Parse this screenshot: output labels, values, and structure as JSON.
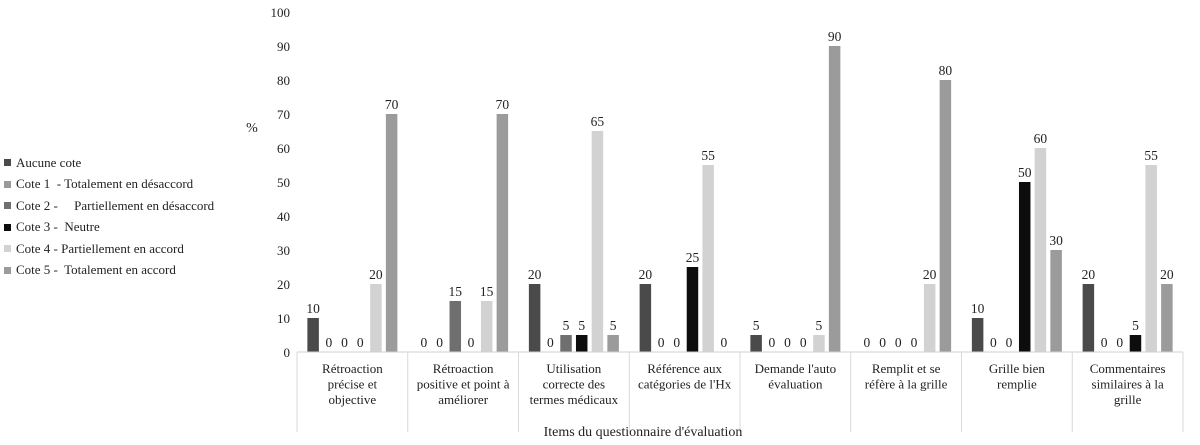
{
  "chart_data": {
    "type": "bar",
    "title": "",
    "xlabel": "Items du questionnaire d'évaluation",
    "ylabel": "%",
    "ylim": [
      0,
      100
    ],
    "yticks": [
      0,
      10,
      20,
      30,
      40,
      50,
      60,
      70,
      80,
      90,
      100
    ],
    "grid": false,
    "legend_position": "left",
    "categories": [
      [
        "Rétroaction",
        "précise et",
        "objective"
      ],
      [
        "Rétroaction",
        "positive et point à",
        "améliorer"
      ],
      [
        "Utilisation",
        "correcte des",
        "termes médicaux"
      ],
      [
        "Référence aux",
        "catégories de l'Hx"
      ],
      [
        "Demande l'auto",
        "évaluation"
      ],
      [
        "Remplit et se",
        "réfère à la grille"
      ],
      [
        "Grille bien",
        "remplie"
      ],
      [
        "Commentaires",
        "similaires à la",
        "grille"
      ]
    ],
    "series": [
      {
        "name": "Aucune cote",
        "color": "#4a4a4a",
        "values": [
          10,
          0,
          20,
          20,
          5,
          0,
          10,
          20
        ]
      },
      {
        "name": "Cote 1  - Totalement en désaccord",
        "color": "#9a9a9a",
        "values": [
          0,
          0,
          0,
          0,
          0,
          0,
          0,
          0
        ]
      },
      {
        "name": "Cote 2 -     Partiellement en désaccord",
        "color": "#6f6f6f",
        "values": [
          0,
          15,
          5,
          0,
          0,
          0,
          0,
          0
        ]
      },
      {
        "name": "Cote 3 -  Neutre",
        "color": "#0d0d0d",
        "values": [
          0,
          0,
          5,
          25,
          0,
          0,
          50,
          5
        ]
      },
      {
        "name": "Cote 4 - Partiellement en accord",
        "color": "#d2d2d2",
        "values": [
          20,
          15,
          65,
          55,
          5,
          20,
          60,
          55
        ]
      },
      {
        "name": "Cote 5 -  Totalement en accord",
        "color": "#9b9b9b",
        "values": [
          70,
          70,
          5,
          0,
          90,
          80,
          30,
          20
        ]
      }
    ]
  }
}
